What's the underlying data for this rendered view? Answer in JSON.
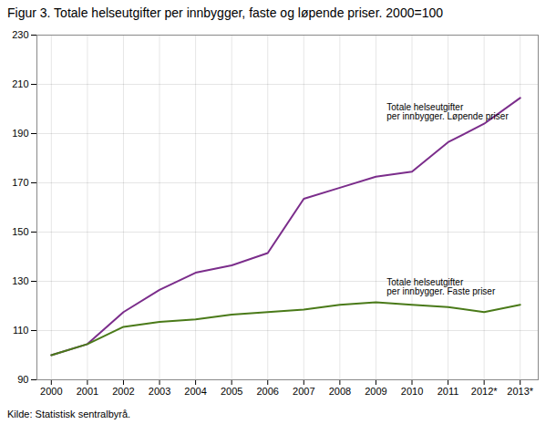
{
  "chart_data": {
    "type": "line",
    "title": "Figur 3. Totale helseutgifter per innbygger, faste og løpende priser. 2000=100",
    "x": [
      2000,
      2001,
      2002,
      2003,
      2004,
      2005,
      2006,
      2007,
      2008,
      2009,
      2010,
      2011,
      2012,
      2013
    ],
    "series": [
      {
        "color": "#7B2D8B",
        "values": [
          100,
          104.5,
          117.5,
          126.5,
          133.5,
          136.5,
          141.5,
          163.5,
          168.0,
          172.5,
          174.5,
          186.5,
          194.0,
          204.5
        ]
      },
      {
        "color": "#4A7A19",
        "values": [
          100,
          104.5,
          111.5,
          113.5,
          114.5,
          116.5,
          117.5,
          118.5,
          120.5,
          121.5,
          120.5,
          119.5,
          117.5,
          120.5
        ]
      }
    ],
    "xlim": [
      1999.6,
      2013.5
    ],
    "xticks": [
      2000,
      2001,
      2002,
      2003,
      2004,
      2005,
      2006,
      2007,
      2008,
      2009,
      2010,
      2011,
      {
        "value": 2012,
        "label": "2012*"
      },
      {
        "value": 2013,
        "label": "2013*"
      }
    ],
    "ylim": [
      90,
      230
    ],
    "yticks": [
      90,
      110,
      130,
      150,
      170,
      190,
      210,
      230
    ],
    "grid": true,
    "annotations": [
      {
        "text": "Totale helseutgifter\nper innbygger. Løpende priser",
        "x": 2009.3,
        "y": 202
      },
      {
        "text": "Totale helseutgifter\nper innbygger. Faste priser",
        "x": 2009.3,
        "y": 131
      }
    ],
    "source": "Kilde: Statistisk sentralbyrå."
  }
}
